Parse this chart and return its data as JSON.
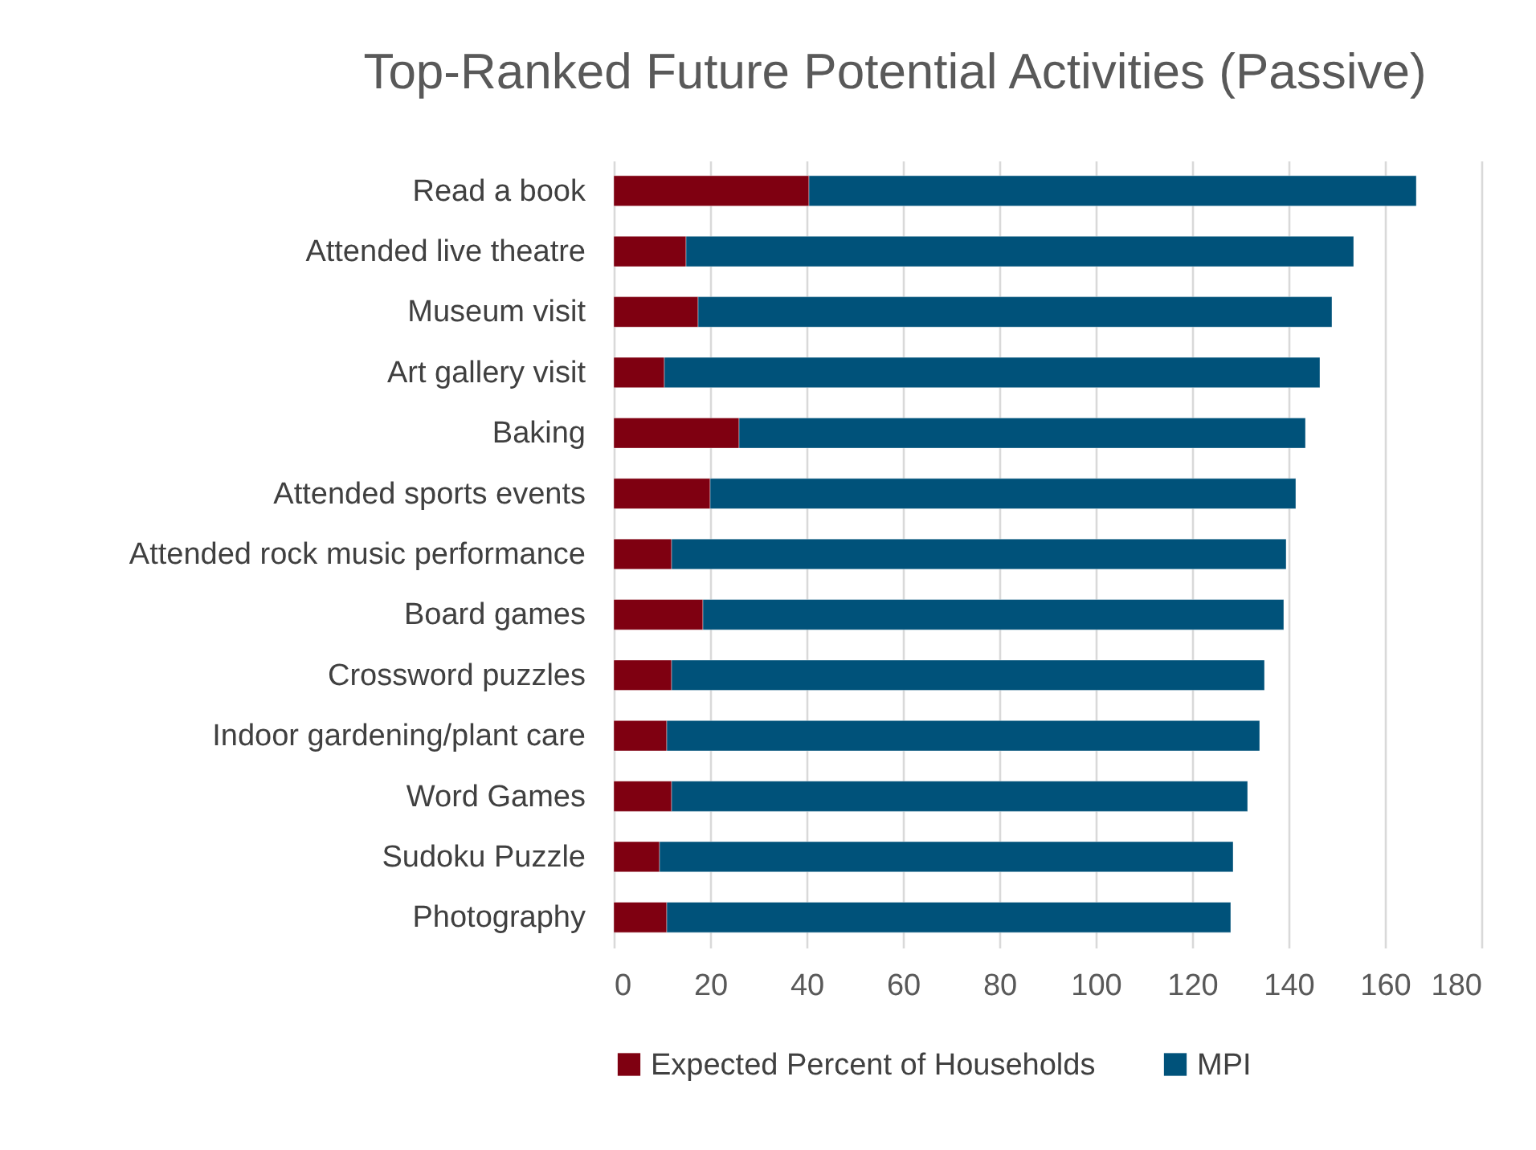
{
  "chart_data": {
    "type": "bar",
    "title": "Top-Ranked Future Potential Activities (Passive)",
    "orientation": "horizontal",
    "stacked": true,
    "categories": [
      "Read a book",
      "Attended live theatre",
      "Museum visit",
      "Art gallery visit",
      "Baking",
      "Attended sports events",
      "Attended rock music performance",
      "Board games",
      "Crossword puzzles",
      "Indoor gardening/plant care",
      "Word Games",
      "Sudoku Puzzle",
      "Photography"
    ],
    "series": [
      {
        "name": "Expected Percent of Households",
        "color": "#7f0011",
        "values": [
          40.5,
          15,
          17.5,
          10.5,
          26,
          20,
          12,
          18.5,
          12,
          11,
          12,
          9.5,
          11
        ]
      },
      {
        "name": "MPI",
        "color": "#00527a",
        "values": [
          126,
          138.5,
          131.5,
          136,
          117.5,
          121.5,
          127.5,
          120.5,
          123,
          123,
          119.5,
          119,
          117
        ]
      }
    ],
    "xlim": [
      0,
      180
    ],
    "xticks": [
      0,
      20,
      40,
      60,
      80,
      100,
      120,
      140,
      160,
      180
    ],
    "grid": "x",
    "legend": "bottom"
  }
}
